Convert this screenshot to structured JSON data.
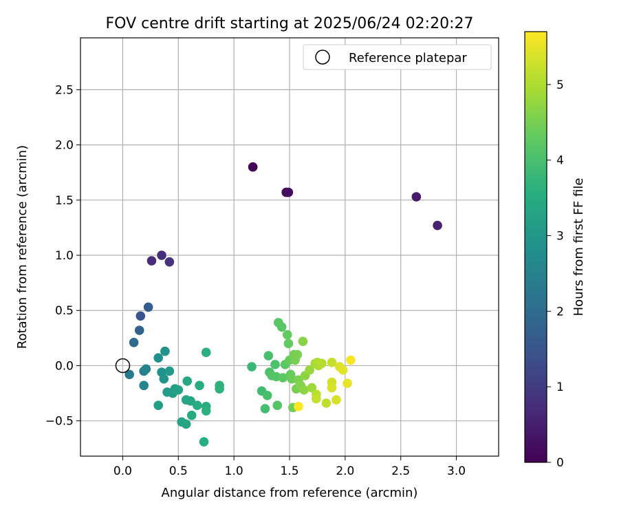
{
  "chart_data": {
    "type": "scatter",
    "title": "FOV centre drift starting at 2025/06/24 02:20:27",
    "xlabel": "Angular distance from reference (arcmin)",
    "ylabel": "Rotation from reference (arcmin)",
    "xlim": [
      -0.38,
      3.38
    ],
    "ylim": [
      -0.82,
      2.97
    ],
    "x_ticks": [
      0.0,
      0.5,
      1.0,
      1.5,
      2.0,
      2.5,
      3.0
    ],
    "x_tick_labels": [
      "0.0",
      "0.5",
      "1.0",
      "1.5",
      "2.0",
      "2.5",
      "3.0"
    ],
    "y_ticks": [
      -0.5,
      0.0,
      0.5,
      1.0,
      1.5,
      2.0,
      2.5
    ],
    "y_tick_labels": [
      "−0.5",
      "0.0",
      "0.5",
      "1.0",
      "1.5",
      "2.0",
      "2.5"
    ],
    "grid": true,
    "legend": {
      "position": "top-right",
      "label": "Reference platepar"
    },
    "reference_point": {
      "x": 0.0,
      "y": 0.0
    },
    "colorbar": {
      "label": "Hours from first FF file",
      "colormap": "viridis",
      "range": [
        0,
        5.7
      ],
      "ticks": [
        0,
        1,
        2,
        3,
        4,
        5
      ],
      "tick_labels": [
        "0",
        "1",
        "2",
        "3",
        "4",
        "5"
      ]
    },
    "points": [
      {
        "x": 1.17,
        "y": 1.8,
        "c": 0.05
      },
      {
        "x": 1.47,
        "y": 1.57,
        "c": 0.15
      },
      {
        "x": 1.49,
        "y": 1.57,
        "c": 0.2
      },
      {
        "x": 2.64,
        "y": 1.53,
        "c": 0.4
      },
      {
        "x": 2.83,
        "y": 1.27,
        "c": 0.55
      },
      {
        "x": 0.26,
        "y": 0.95,
        "c": 0.7
      },
      {
        "x": 0.35,
        "y": 1.0,
        "c": 0.75
      },
      {
        "x": 0.42,
        "y": 0.94,
        "c": 0.85
      },
      {
        "x": 0.16,
        "y": 0.45,
        "c": 1.5
      },
      {
        "x": 0.23,
        "y": 0.53,
        "c": 1.7
      },
      {
        "x": 0.15,
        "y": 0.32,
        "c": 1.8
      },
      {
        "x": 0.1,
        "y": 0.21,
        "c": 1.95
      },
      {
        "x": 0.06,
        "y": -0.08,
        "c": 2.3
      },
      {
        "x": 0.19,
        "y": -0.05,
        "c": 2.4
      },
      {
        "x": 0.21,
        "y": -0.03,
        "c": 2.5
      },
      {
        "x": 0.19,
        "y": -0.18,
        "c": 2.55
      },
      {
        "x": 0.32,
        "y": 0.07,
        "c": 2.8
      },
      {
        "x": 0.38,
        "y": 0.13,
        "c": 2.9
      },
      {
        "x": 0.35,
        "y": -0.06,
        "c": 2.9
      },
      {
        "x": 0.37,
        "y": -0.12,
        "c": 2.95
      },
      {
        "x": 0.42,
        "y": -0.05,
        "c": 3.05
      },
      {
        "x": 0.4,
        "y": -0.24,
        "c": 3.1
      },
      {
        "x": 0.45,
        "y": -0.25,
        "c": 3.15
      },
      {
        "x": 0.47,
        "y": -0.21,
        "c": 3.2
      },
      {
        "x": 0.5,
        "y": -0.22,
        "c": 3.25
      },
      {
        "x": 0.32,
        "y": -0.36,
        "c": 3.2
      },
      {
        "x": 0.53,
        "y": -0.51,
        "c": 3.3
      },
      {
        "x": 0.57,
        "y": -0.53,
        "c": 3.35
      },
      {
        "x": 0.57,
        "y": -0.31,
        "c": 3.35
      },
      {
        "x": 0.58,
        "y": -0.14,
        "c": 3.4
      },
      {
        "x": 0.61,
        "y": -0.32,
        "c": 3.4
      },
      {
        "x": 0.62,
        "y": -0.45,
        "c": 3.45
      },
      {
        "x": 0.67,
        "y": -0.36,
        "c": 3.5
      },
      {
        "x": 0.69,
        "y": -0.18,
        "c": 3.5
      },
      {
        "x": 0.73,
        "y": -0.69,
        "c": 3.55
      },
      {
        "x": 0.75,
        "y": -0.37,
        "c": 3.55
      },
      {
        "x": 0.75,
        "y": -0.41,
        "c": 3.6
      },
      {
        "x": 0.75,
        "y": 0.12,
        "c": 3.6
      },
      {
        "x": 0.87,
        "y": -0.18,
        "c": 3.65
      },
      {
        "x": 0.87,
        "y": -0.21,
        "c": 3.65
      },
      {
        "x": 1.16,
        "y": -0.01,
        "c": 3.8
      },
      {
        "x": 1.25,
        "y": -0.23,
        "c": 3.9
      },
      {
        "x": 1.28,
        "y": -0.39,
        "c": 3.95
      },
      {
        "x": 1.3,
        "y": -0.27,
        "c": 4.0
      },
      {
        "x": 1.31,
        "y": 0.09,
        "c": 4.0
      },
      {
        "x": 1.32,
        "y": -0.06,
        "c": 4.05
      },
      {
        "x": 1.34,
        "y": -0.09,
        "c": 4.1
      },
      {
        "x": 1.37,
        "y": 0.01,
        "c": 4.05
      },
      {
        "x": 1.38,
        "y": -0.1,
        "c": 4.15
      },
      {
        "x": 1.39,
        "y": -0.36,
        "c": 4.15
      },
      {
        "x": 1.4,
        "y": 0.39,
        "c": 4.2
      },
      {
        "x": 1.43,
        "y": 0.35,
        "c": 4.2
      },
      {
        "x": 1.44,
        "y": -0.11,
        "c": 4.25
      },
      {
        "x": 1.46,
        "y": 0.01,
        "c": 4.25
      },
      {
        "x": 1.48,
        "y": 0.28,
        "c": 4.3
      },
      {
        "x": 1.49,
        "y": 0.2,
        "c": 4.3
      },
      {
        "x": 1.5,
        "y": 0.05,
        "c": 4.35
      },
      {
        "x": 1.51,
        "y": -0.08,
        "c": 4.35
      },
      {
        "x": 1.52,
        "y": -0.12,
        "c": 4.4
      },
      {
        "x": 1.53,
        "y": -0.38,
        "c": 4.45
      },
      {
        "x": 1.54,
        "y": 0.1,
        "c": 4.45
      },
      {
        "x": 1.55,
        "y": 0.05,
        "c": 4.5
      },
      {
        "x": 1.56,
        "y": -0.21,
        "c": 4.5
      },
      {
        "x": 1.57,
        "y": 0.1,
        "c": 4.55
      },
      {
        "x": 1.58,
        "y": -0.13,
        "c": 4.55
      },
      {
        "x": 1.6,
        "y": -0.18,
        "c": 4.6
      },
      {
        "x": 1.62,
        "y": 0.22,
        "c": 4.65
      },
      {
        "x": 1.63,
        "y": -0.22,
        "c": 4.7
      },
      {
        "x": 1.64,
        "y": -0.09,
        "c": 4.7
      },
      {
        "x": 1.68,
        "y": -0.04,
        "c": 4.8
      },
      {
        "x": 1.7,
        "y": -0.2,
        "c": 4.85
      },
      {
        "x": 1.73,
        "y": 0.02,
        "c": 4.9
      },
      {
        "x": 1.75,
        "y": 0.03,
        "c": 5.0
      },
      {
        "x": 1.76,
        "y": 0.0,
        "c": 5.0
      },
      {
        "x": 1.74,
        "y": -0.26,
        "c": 5.1
      },
      {
        "x": 1.74,
        "y": -0.3,
        "c": 5.2
      },
      {
        "x": 1.79,
        "y": 0.02,
        "c": 5.05
      },
      {
        "x": 1.83,
        "y": -0.34,
        "c": 5.15
      },
      {
        "x": 1.88,
        "y": 0.03,
        "c": 5.2
      },
      {
        "x": 1.88,
        "y": -0.15,
        "c": 5.3
      },
      {
        "x": 1.88,
        "y": -0.2,
        "c": 5.35
      },
      {
        "x": 1.92,
        "y": -0.31,
        "c": 5.35
      },
      {
        "x": 1.95,
        "y": -0.01,
        "c": 5.4
      },
      {
        "x": 1.98,
        "y": -0.04,
        "c": 5.45
      },
      {
        "x": 2.02,
        "y": -0.16,
        "c": 5.5
      },
      {
        "x": 2.05,
        "y": 0.05,
        "c": 5.65
      },
      {
        "x": 1.58,
        "y": -0.37,
        "c": 5.7
      }
    ]
  }
}
